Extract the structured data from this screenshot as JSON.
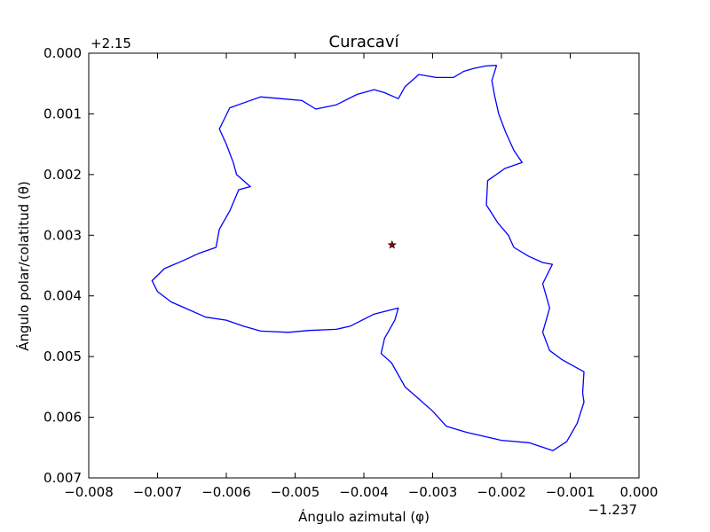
{
  "chart_data": {
    "type": "line",
    "title": "Curacaví",
    "xlabel": "Ángulo azimutal (φ)",
    "ylabel": "Ángulo polar/colatitud (θ)",
    "x_offset_label": "−1.237",
    "y_offset_label": "+2.15",
    "x_offset": -1.237,
    "y_offset": 2.15,
    "xlim": [
      -0.008,
      0.0
    ],
    "ylim": [
      0.007,
      0.0
    ],
    "y_inverted": true,
    "grid": false,
    "x_ticks": [
      -0.008,
      -0.007,
      -0.006,
      -0.005,
      -0.004,
      -0.003,
      -0.002,
      -0.001,
      0.0
    ],
    "x_tick_labels": [
      "−0.008",
      "−0.007",
      "−0.006",
      "−0.005",
      "−0.004",
      "−0.003",
      "−0.002",
      "−0.001",
      "0.000"
    ],
    "y_ticks": [
      0.0,
      0.001,
      0.002,
      0.003,
      0.004,
      0.005,
      0.006,
      0.007
    ],
    "y_tick_labels": [
      "0.000",
      "0.001",
      "0.002",
      "0.003",
      "0.004",
      "0.005",
      "0.006",
      "0.007"
    ],
    "series": [
      {
        "kind": "boundary",
        "color": "#0000ff",
        "points": [
          [
            -0.00207,
            0.0002
          ],
          [
            -0.00214,
            0.00045
          ],
          [
            -0.0021,
            0.0007
          ],
          [
            -0.00204,
            0.001
          ],
          [
            -0.00194,
            0.0013
          ],
          [
            -0.00182,
            0.0016
          ],
          [
            -0.0017,
            0.0018
          ],
          [
            -0.00195,
            0.0019
          ],
          [
            -0.0022,
            0.0021
          ],
          [
            -0.00222,
            0.0025
          ],
          [
            -0.00205,
            0.0028
          ],
          [
            -0.0019,
            0.003
          ],
          [
            -0.00182,
            0.0032
          ],
          [
            -0.0016,
            0.00335
          ],
          [
            -0.0014,
            0.00345
          ],
          [
            -0.00126,
            0.00348
          ],
          [
            -0.0014,
            0.0038
          ],
          [
            -0.0013,
            0.0042
          ],
          [
            -0.0014,
            0.0046
          ],
          [
            -0.0013,
            0.0049
          ],
          [
            -0.00112,
            0.00505
          ],
          [
            -0.0008,
            0.00525
          ],
          [
            -0.00082,
            0.0056
          ],
          [
            -0.0008,
            0.00575
          ],
          [
            -0.0009,
            0.0061
          ],
          [
            -0.00105,
            0.0064
          ],
          [
            -0.00125,
            0.00655
          ],
          [
            -0.0016,
            0.00642
          ],
          [
            -0.002,
            0.00638
          ],
          [
            -0.0025,
            0.00625
          ],
          [
            -0.0028,
            0.00615
          ],
          [
            -0.003,
            0.0059
          ],
          [
            -0.0032,
            0.0057
          ],
          [
            -0.0034,
            0.0055
          ],
          [
            -0.0036,
            0.0051
          ],
          [
            -0.00375,
            0.00495
          ],
          [
            -0.0037,
            0.0047
          ],
          [
            -0.00355,
            0.0044
          ],
          [
            -0.0035,
            0.0042
          ],
          [
            -0.00385,
            0.0043
          ],
          [
            -0.0042,
            0.0045
          ],
          [
            -0.0044,
            0.00455
          ],
          [
            -0.0048,
            0.00457
          ],
          [
            -0.0051,
            0.0046
          ],
          [
            -0.0055,
            0.00458
          ],
          [
            -0.00575,
            0.0045
          ],
          [
            -0.006,
            0.0044
          ],
          [
            -0.0063,
            0.00435
          ],
          [
            -0.0066,
            0.0042
          ],
          [
            -0.0068,
            0.0041
          ],
          [
            -0.007,
            0.00393
          ],
          [
            -0.00708,
            0.00375
          ],
          [
            -0.0069,
            0.00355
          ],
          [
            -0.00665,
            0.00343
          ],
          [
            -0.0064,
            0.0033
          ],
          [
            -0.00615,
            0.0032
          ],
          [
            -0.0061,
            0.0029
          ],
          [
            -0.00595,
            0.0026
          ],
          [
            -0.00582,
            0.00225
          ],
          [
            -0.00565,
            0.0022
          ],
          [
            -0.00585,
            0.002
          ],
          [
            -0.0059,
            0.0018
          ],
          [
            -0.006,
            0.0015
          ],
          [
            -0.0061,
            0.00125
          ],
          [
            -0.00595,
            0.0009
          ],
          [
            -0.0057,
            0.0008
          ],
          [
            -0.0055,
            0.00072
          ],
          [
            -0.0052,
            0.00075
          ],
          [
            -0.0049,
            0.00078
          ],
          [
            -0.0047,
            0.00092
          ],
          [
            -0.0044,
            0.00085
          ],
          [
            -0.0041,
            0.00068
          ],
          [
            -0.00385,
            0.0006
          ],
          [
            -0.0037,
            0.00065
          ],
          [
            -0.0035,
            0.00075
          ],
          [
            -0.0034,
            0.00055
          ],
          [
            -0.0032,
            0.00035
          ],
          [
            -0.00295,
            0.0004
          ],
          [
            -0.0027,
            0.0004
          ],
          [
            -0.00255,
            0.0003
          ],
          [
            -0.0024,
            0.00025
          ],
          [
            -0.00223,
            0.00021
          ],
          [
            -0.00207,
            0.0002
          ]
        ]
      }
    ],
    "marker": {
      "kind": "centroid",
      "symbol": "star",
      "color": "#8b0000",
      "x": -0.00359,
      "y": 0.00316
    }
  }
}
